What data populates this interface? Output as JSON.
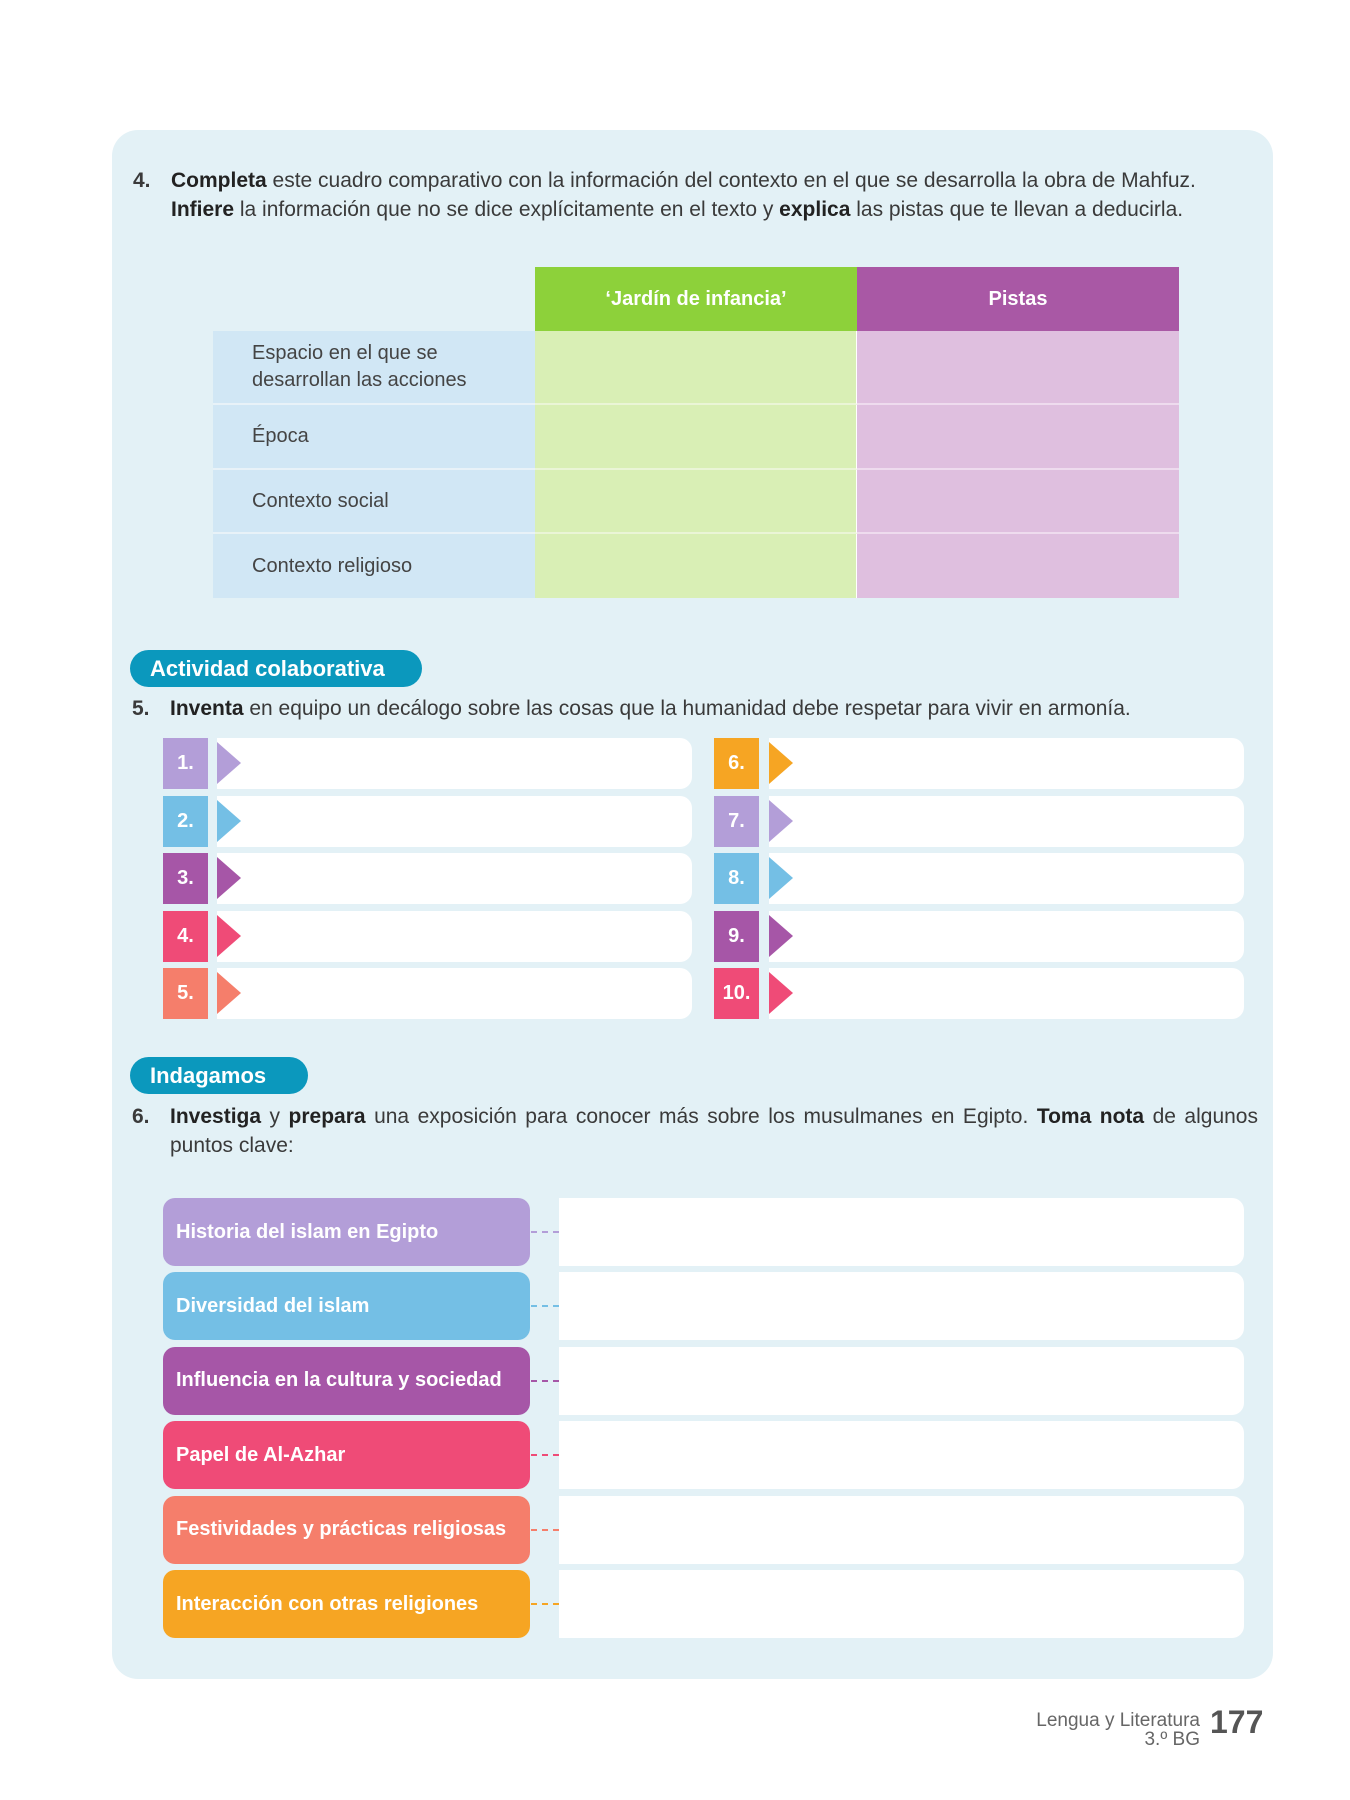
{
  "q4": {
    "number": "4.",
    "b1": "Completa",
    "t1": " este cuadro comparativo con la información del contexto en el que se desarrolla la obra de Mahfuz.",
    "b2": "Infiere",
    "t2": " la información que no se dice explícitamente en el texto y ",
    "b3": "explica",
    "t3": " las pistas que te llevan a deducirla."
  },
  "table": {
    "headers": [
      "‘Jardín de infancia’",
      "Pistas"
    ],
    "rows": [
      "Espacio en el que se desarrollan las acciones",
      "Época",
      "Contexto social",
      "Contexto religioso"
    ]
  },
  "colaborativa": {
    "label": "Actividad colaborativa"
  },
  "q5": {
    "number": "5.",
    "b1": "Inventa",
    "t1": " en equipo un decálogo sobre las cosas que la humanidad debe respetar para vivir en armonía."
  },
  "decalogo": [
    {
      "n": "1.",
      "color": "#b39ed8"
    },
    {
      "n": "2.",
      "color": "#74bfe5"
    },
    {
      "n": "3.",
      "color": "#a656a7"
    },
    {
      "n": "4.",
      "color": "#ef4b77"
    },
    {
      "n": "5.",
      "color": "#f57e6b"
    },
    {
      "n": "6.",
      "color": "#f6a523"
    },
    {
      "n": "7.",
      "color": "#b39ed8"
    },
    {
      "n": "8.",
      "color": "#74bfe5"
    },
    {
      "n": "9.",
      "color": "#a656a7"
    },
    {
      "n": "10.",
      "color": "#ef4b77"
    }
  ],
  "indagamos": {
    "label": "Indagamos"
  },
  "q6": {
    "number": "6.",
    "b1": "Investiga",
    "t1": " y ",
    "b2": "prepara",
    "t2": " una exposición para conocer más sobre los musulmanes en Egipto. ",
    "b3": "Toma nota",
    "t3": " de algunos puntos clave:"
  },
  "topics": [
    {
      "label": "Historia del islam en Egipto",
      "color": "#b39ed8"
    },
    {
      "label": "Diversidad del islam",
      "color": "#74bfe5"
    },
    {
      "label": "Influencia en la cultura y sociedad",
      "color": "#a656a7"
    },
    {
      "label": "Papel de Al-Azhar",
      "color": "#ef4b77"
    },
    {
      "label": "Festividades y prácticas religiosas",
      "color": "#f57e6b"
    },
    {
      "label": "Interacción con otras religiones",
      "color": "#f6a523"
    }
  ],
  "footer": {
    "subject": "Lengua y Literatura",
    "grade": "3.º BG",
    "page": "177"
  }
}
